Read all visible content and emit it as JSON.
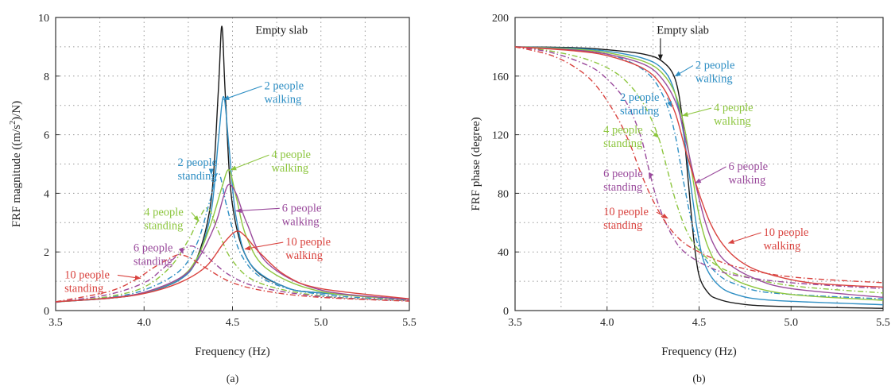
{
  "colors": {
    "empty": "#1a1a1a",
    "two": "#2f8fc4",
    "four": "#8dc63f",
    "six": "#9a4a9c",
    "ten": "#d9433f",
    "grid": "#9a9a9a",
    "axis": "#333333"
  },
  "chart_data": [
    {
      "type": "line",
      "panel_label": "(a)",
      "xlabel": "Frequency (Hz)",
      "ylabel_pre": "FRF magnitude ((m/s",
      "ylabel_sup": "2",
      "ylabel_post": ")/N)",
      "xlim": [
        3.5,
        5.5
      ],
      "ylim": [
        0,
        10
      ],
      "xticks": [
        3.5,
        4.0,
        4.5,
        5.0,
        5.5
      ],
      "xtick_labels": [
        "3.5",
        "4.0",
        "4.5",
        "5.0",
        "5.5"
      ],
      "yticks": [
        0,
        2,
        4,
        6,
        8,
        10
      ],
      "ytick_labels": [
        "0",
        "2",
        "4",
        "6",
        "8",
        "10"
      ],
      "grid": true,
      "series": [
        {
          "name": "Empty slab",
          "color_key": "empty",
          "dash": "solid",
          "label_lines": [
            "Empty slab"
          ],
          "label_at": [
            4.63,
            9.45
          ],
          "arrow_to": null,
          "x": [
            3.5,
            3.8,
            4.0,
            4.2,
            4.3,
            4.38,
            4.42,
            4.44,
            4.46,
            4.5,
            4.6,
            4.8,
            5.0,
            5.5
          ],
          "y": [
            0.3,
            0.42,
            0.6,
            1.05,
            1.8,
            3.8,
            7.5,
            9.7,
            7.3,
            3.6,
            1.6,
            0.8,
            0.6,
            0.38
          ]
        },
        {
          "name": "2 people walking",
          "color_key": "two",
          "dash": "solid",
          "label_lines": [
            "2 people",
            "walking"
          ],
          "label_at": [
            4.68,
            7.55
          ],
          "arrow_to": [
            4.45,
            7.2
          ],
          "x": [
            3.5,
            3.8,
            4.0,
            4.2,
            4.3,
            4.38,
            4.42,
            4.45,
            4.48,
            4.52,
            4.6,
            4.8,
            5.0,
            5.5
          ],
          "y": [
            0.3,
            0.42,
            0.6,
            1.05,
            1.75,
            3.4,
            5.8,
            7.3,
            5.6,
            3.2,
            1.6,
            0.8,
            0.6,
            0.38
          ]
        },
        {
          "name": "2 people standing",
          "color_key": "two",
          "dash": "dashdot",
          "label_lines": [
            "2 people",
            "standing"
          ],
          "label_at": [
            4.19,
            4.93
          ],
          "arrow_to": [
            4.38,
            4.65
          ],
          "x": [
            3.5,
            3.8,
            4.0,
            4.2,
            4.3,
            4.37,
            4.42,
            4.47,
            4.55,
            4.7,
            5.0,
            5.5
          ],
          "y": [
            0.3,
            0.45,
            0.7,
            1.35,
            2.3,
            3.7,
            4.7,
            3.5,
            1.9,
            1.0,
            0.55,
            0.36
          ]
        },
        {
          "name": "4 people walking",
          "color_key": "four",
          "dash": "solid",
          "label_lines": [
            "4 people",
            "walking"
          ],
          "label_at": [
            4.72,
            5.2
          ],
          "arrow_to": [
            4.49,
            4.8
          ],
          "x": [
            3.5,
            3.8,
            4.0,
            4.2,
            4.3,
            4.38,
            4.44,
            4.48,
            4.52,
            4.58,
            4.7,
            5.0,
            5.5
          ],
          "y": [
            0.3,
            0.43,
            0.62,
            1.1,
            1.8,
            3.0,
            4.2,
            4.8,
            3.9,
            2.5,
            1.4,
            0.65,
            0.38
          ]
        },
        {
          "name": "4 people standing",
          "color_key": "four",
          "dash": "dashdot",
          "label_lines": [
            "4 people",
            "standing"
          ],
          "label_at": [
            4.0,
            3.24
          ],
          "arrow_to": [
            4.31,
            3.05
          ],
          "x": [
            3.5,
            3.8,
            4.0,
            4.15,
            4.25,
            4.3,
            4.36,
            4.42,
            4.5,
            4.65,
            5.0,
            5.5
          ],
          "y": [
            0.28,
            0.48,
            0.8,
            1.5,
            2.4,
            3.0,
            3.5,
            2.7,
            1.7,
            0.95,
            0.5,
            0.34
          ]
        },
        {
          "name": "6 people walking",
          "color_key": "six",
          "dash": "solid",
          "label_lines": [
            "6 people",
            "walking"
          ],
          "label_at": [
            4.78,
            3.38
          ],
          "arrow_to": [
            4.52,
            3.4
          ],
          "x": [
            3.5,
            3.8,
            4.0,
            4.2,
            4.3,
            4.4,
            4.45,
            4.48,
            4.52,
            4.58,
            4.7,
            5.0,
            5.5
          ],
          "y": [
            0.3,
            0.43,
            0.62,
            1.1,
            1.7,
            2.9,
            3.9,
            4.3,
            4.0,
            3.0,
            1.6,
            0.7,
            0.38
          ]
        },
        {
          "name": "6 people standing",
          "color_key": "six",
          "dash": "dashdot",
          "label_lines": [
            "6 people",
            "standing"
          ],
          "label_at": [
            3.94,
            2.02
          ],
          "arrow_to": [
            4.22,
            1.95
          ],
          "x": [
            3.5,
            3.8,
            4.0,
            4.1,
            4.2,
            4.26,
            4.32,
            4.4,
            4.5,
            4.65,
            5.0,
            5.5
          ],
          "y": [
            0.28,
            0.55,
            0.95,
            1.4,
            1.95,
            2.2,
            2.05,
            1.6,
            1.15,
            0.8,
            0.48,
            0.33
          ]
        },
        {
          "name": "10 people walking",
          "color_key": "ten",
          "dash": "solid",
          "label_lines": [
            "10 people",
            "walking"
          ],
          "label_at": [
            4.8,
            2.22
          ],
          "arrow_to": [
            4.57,
            2.1
          ],
          "x": [
            3.5,
            3.8,
            4.0,
            4.2,
            4.35,
            4.45,
            4.52,
            4.57,
            4.65,
            4.8,
            5.0,
            5.5
          ],
          "y": [
            0.3,
            0.42,
            0.58,
            0.95,
            1.5,
            2.3,
            2.7,
            2.55,
            2.0,
            1.2,
            0.75,
            0.4
          ]
        },
        {
          "name": "10 people standing",
          "color_key": "ten",
          "dash": "dashdot",
          "label_lines": [
            "10 people",
            "standing"
          ],
          "label_at": [
            3.55,
            1.1
          ],
          "arrow_to": [
            3.98,
            1.1
          ],
          "x": [
            3.5,
            3.8,
            3.95,
            4.05,
            4.15,
            4.2,
            4.26,
            4.35,
            4.5,
            4.7,
            5.0,
            5.5
          ],
          "y": [
            0.3,
            0.65,
            1.05,
            1.45,
            1.8,
            1.9,
            1.8,
            1.45,
            0.95,
            0.65,
            0.45,
            0.32
          ]
        }
      ]
    },
    {
      "type": "line",
      "panel_label": "(b)",
      "xlabel": "Frequency (Hz)",
      "ylabel": "FRF phase (degree)",
      "xlim": [
        3.5,
        5.5
      ],
      "ylim": [
        0,
        200
      ],
      "xticks": [
        3.5,
        4.0,
        4.5,
        5.0,
        5.5
      ],
      "xtick_labels": [
        "3.5",
        "4.0",
        "4.5",
        "5.0",
        "5.5"
      ],
      "yticks": [
        0,
        40,
        80,
        120,
        160,
        200
      ],
      "ytick_labels": [
        "0",
        "40",
        "80",
        "120",
        "160",
        "200"
      ],
      "grid": true,
      "series": [
        {
          "name": "Empty slab",
          "color_key": "empty",
          "dash": "solid",
          "label_lines": [
            "Empty slab"
          ],
          "label_at": [
            4.27,
            189
          ],
          "arrow_to": [
            4.29,
            171
          ],
          "x": [
            3.5,
            3.8,
            4.0,
            4.2,
            4.3,
            4.37,
            4.41,
            4.44,
            4.47,
            4.5,
            4.55,
            4.6,
            4.7,
            4.9,
            5.5
          ],
          "y": [
            180,
            179.5,
            178,
            175,
            170,
            158,
            130,
            90,
            50,
            24,
            12,
            8,
            5,
            3,
            1.5
          ]
        },
        {
          "name": "2 people walking",
          "color_key": "two",
          "dash": "solid",
          "label_lines": [
            "2 people",
            "walking"
          ],
          "label_at": [
            4.48,
            165
          ],
          "arrow_to": [
            4.37,
            160
          ],
          "x": [
            3.5,
            3.8,
            4.0,
            4.2,
            4.3,
            4.36,
            4.41,
            4.45,
            4.49,
            4.53,
            4.6,
            4.7,
            4.9,
            5.5
          ],
          "y": [
            180,
            179,
            177,
            172,
            165,
            152,
            125,
            90,
            55,
            32,
            18,
            11,
            7,
            4
          ]
        },
        {
          "name": "2 people standing",
          "color_key": "two",
          "dash": "dashdot",
          "label_lines": [
            "2 people",
            "standing"
          ],
          "label_at": [
            4.07,
            143
          ],
          "arrow_to": [
            4.35,
            139
          ],
          "x": [
            3.5,
            3.8,
            4.0,
            4.15,
            4.25,
            4.32,
            4.37,
            4.42,
            4.47,
            4.52,
            4.6,
            4.7,
            4.9,
            5.5
          ],
          "y": [
            180,
            178,
            175,
            168,
            158,
            142,
            120,
            85,
            55,
            38,
            25,
            18,
            12,
            8
          ]
        },
        {
          "name": "4 people walking",
          "color_key": "four",
          "dash": "solid",
          "label_lines": [
            "4 people",
            "walking"
          ],
          "label_at": [
            4.58,
            136
          ],
          "arrow_to": [
            4.41,
            133
          ],
          "x": [
            3.5,
            3.8,
            4.0,
            4.2,
            4.3,
            4.37,
            4.42,
            4.46,
            4.5,
            4.55,
            4.62,
            4.75,
            5.0,
            5.5
          ],
          "y": [
            180,
            178.5,
            176,
            170,
            162,
            148,
            125,
            95,
            65,
            43,
            28,
            18,
            11,
            7
          ]
        },
        {
          "name": "4 people standing",
          "color_key": "four",
          "dash": "dashdot",
          "label_lines": [
            "4 people",
            "standing"
          ],
          "label_at": [
            3.98,
            121
          ],
          "arrow_to": [
            4.28,
            118
          ],
          "x": [
            3.5,
            3.7,
            3.9,
            4.05,
            4.15,
            4.22,
            4.28,
            4.33,
            4.38,
            4.45,
            4.55,
            4.7,
            5.0,
            5.5
          ],
          "y": [
            180,
            177,
            171,
            162,
            150,
            136,
            118,
            95,
            72,
            50,
            35,
            25,
            17,
            12
          ]
        },
        {
          "name": "6 people walking",
          "color_key": "six",
          "dash": "solid",
          "label_lines": [
            "6 people",
            "walking"
          ],
          "label_at": [
            4.66,
            96
          ],
          "arrow_to": [
            4.48,
            87
          ],
          "x": [
            3.5,
            3.8,
            4.0,
            4.2,
            4.3,
            4.38,
            4.43,
            4.48,
            4.53,
            4.58,
            4.65,
            4.8,
            5.0,
            5.5
          ],
          "y": [
            180,
            178,
            175,
            168,
            158,
            140,
            115,
            87,
            62,
            45,
            33,
            22,
            15,
            9
          ]
        },
        {
          "name": "6 people standing",
          "color_key": "six",
          "dash": "dashdot",
          "label_lines": [
            "6 people",
            "standing"
          ],
          "label_at": [
            3.98,
            91
          ],
          "arrow_to": [
            4.23,
            90
          ],
          "x": [
            3.5,
            3.7,
            3.9,
            4.0,
            4.1,
            4.18,
            4.23,
            4.28,
            4.35,
            4.42,
            4.55,
            4.7,
            5.0,
            5.5
          ],
          "y": [
            180,
            176,
            167,
            158,
            143,
            120,
            95,
            72,
            52,
            40,
            30,
            24,
            19,
            15
          ]
        },
        {
          "name": "10 people walking",
          "color_key": "ten",
          "dash": "solid",
          "label_lines": [
            "10 people",
            "walking"
          ],
          "label_at": [
            4.85,
            51
          ],
          "arrow_to": [
            4.66,
            46
          ],
          "x": [
            3.5,
            3.8,
            4.0,
            4.2,
            4.3,
            4.37,
            4.43,
            4.5,
            4.56,
            4.63,
            4.72,
            4.85,
            5.1,
            5.5
          ],
          "y": [
            180,
            177.5,
            174,
            165,
            153,
            135,
            108,
            80,
            60,
            45,
            34,
            26,
            19,
            16
          ]
        },
        {
          "name": "10 people standing",
          "color_key": "ten",
          "dash": "dashdot",
          "label_lines": [
            "10 people",
            "standing"
          ],
          "label_at": [
            3.98,
            65
          ],
          "arrow_to": [
            4.33,
            63
          ],
          "x": [
            3.5,
            3.7,
            3.85,
            3.95,
            4.05,
            4.12,
            4.18,
            4.25,
            4.33,
            4.42,
            4.55,
            4.7,
            5.0,
            5.5
          ],
          "y": [
            180,
            174,
            164,
            152,
            133,
            115,
            95,
            75,
            58,
            46,
            37,
            30,
            23,
            19
          ]
        }
      ]
    }
  ]
}
